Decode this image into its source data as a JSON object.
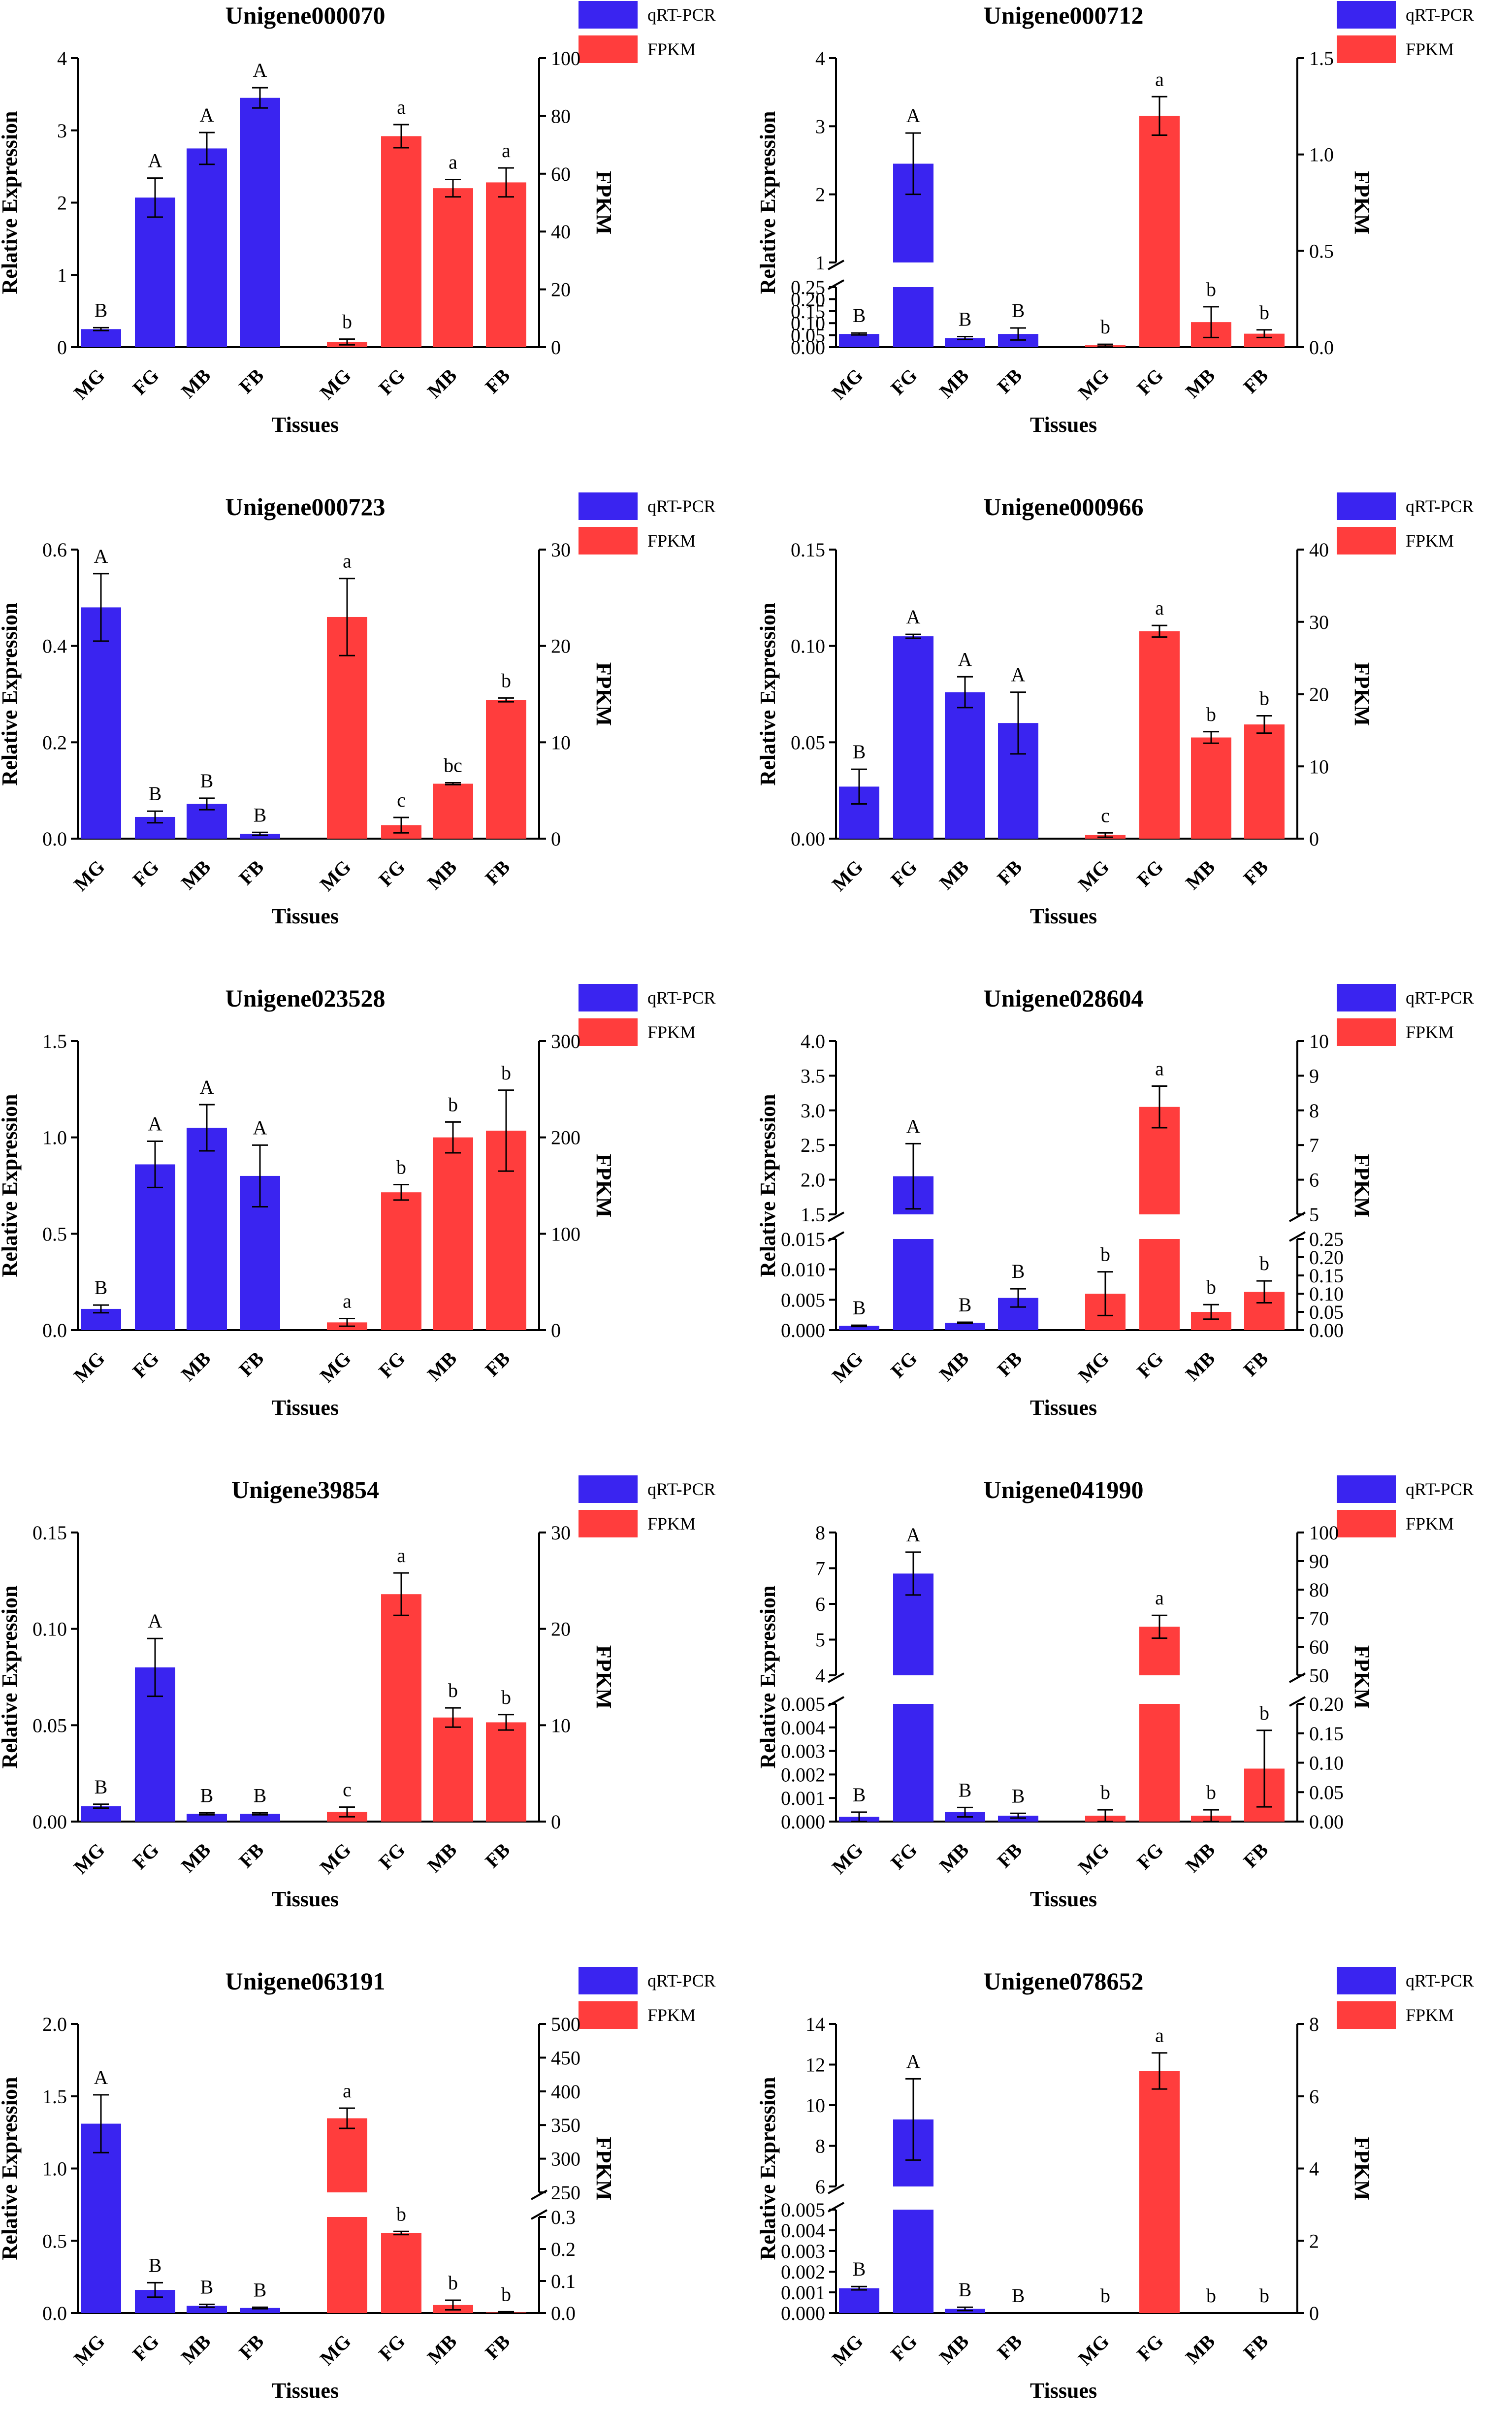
{
  "colors": {
    "qrt": "#3a24f0",
    "fpkm": "#ff3d3d"
  },
  "legend": {
    "qrt": "qRT-PCR",
    "fpkm": "FPKM"
  },
  "chart_data": [
    {
      "type": "bar",
      "title": "Unigene000070",
      "xlabel": "Tissues",
      "ylabel": "Relative Expression",
      "y2label": "FPKM",
      "categories": [
        "MG",
        "FG",
        "MB",
        "FB"
      ],
      "series": [
        {
          "name": "qRT-PCR",
          "values": [
            0.25,
            2.07,
            2.75,
            3.45
          ],
          "errors": [
            0.02,
            0.27,
            0.22,
            0.14
          ],
          "letters": [
            "B",
            "A",
            "A",
            "A"
          ]
        },
        {
          "name": "FPKM",
          "values": [
            1.8,
            73,
            55,
            57
          ],
          "errors": [
            1,
            4,
            3,
            5
          ],
          "letters": [
            "b",
            "a",
            "a",
            "a"
          ]
        }
      ],
      "left_axis": {
        "segments": [
          {
            "lo": 0,
            "hi": 4,
            "ticks": [
              "0",
              "1",
              "2",
              "3",
              "4"
            ]
          }
        ]
      },
      "right_axis": {
        "segments": [
          {
            "lo": 0,
            "hi": 100,
            "ticks": [
              "0",
              "20",
              "40",
              "60",
              "80",
              "100"
            ]
          }
        ]
      }
    },
    {
      "type": "bar",
      "title": "Unigene000712",
      "xlabel": "Tissues",
      "ylabel": "Relative Expression",
      "y2label": "FPKM",
      "categories": [
        "MG",
        "FG",
        "MB",
        "FB"
      ],
      "series": [
        {
          "name": "qRT-PCR",
          "values": [
            0.055,
            2.45,
            0.038,
            0.055
          ],
          "errors": [
            0.004,
            0.45,
            0.006,
            0.025
          ],
          "letters": [
            "B",
            "A",
            "B",
            "B"
          ]
        },
        {
          "name": "FPKM",
          "values": [
            0.01,
            1.2,
            0.13,
            0.07
          ],
          "errors": [
            0.005,
            0.1,
            0.08,
            0.02
          ],
          "letters": [
            "b",
            "a",
            "b",
            "b"
          ]
        }
      ],
      "left_axis": {
        "segments": [
          {
            "lo": 0,
            "hi": 0.25,
            "ticks": [
              "0.00",
              "0.05",
              "0.10",
              "0.15",
              "0.20",
              "0.25"
            ]
          },
          {
            "lo": 1,
            "hi": 4,
            "ticks": [
              "1",
              "2",
              "3",
              "4"
            ]
          }
        ]
      },
      "right_axis": {
        "segments": [
          {
            "lo": 0,
            "hi": 1.5,
            "ticks": [
              "0.0",
              "0.5",
              "1.0",
              "1.5"
            ]
          }
        ]
      }
    },
    {
      "type": "bar",
      "title": "Unigene000723",
      "xlabel": "Tissues",
      "ylabel": "Relative Expression",
      "y2label": "FPKM",
      "categories": [
        "MG",
        "FG",
        "MB",
        "FB"
      ],
      "series": [
        {
          "name": "qRT-PCR",
          "values": [
            0.48,
            0.045,
            0.072,
            0.01
          ],
          "errors": [
            0.07,
            0.012,
            0.012,
            0.003
          ],
          "letters": [
            "A",
            "B",
            "B",
            "B"
          ]
        },
        {
          "name": "FPKM",
          "values": [
            23,
            1.4,
            5.7,
            14.4
          ],
          "errors": [
            4,
            0.8,
            0.1,
            0.2
          ],
          "letters": [
            "a",
            "c",
            "bc",
            "b"
          ]
        }
      ],
      "left_axis": {
        "segments": [
          {
            "lo": 0,
            "hi": 0.6,
            "ticks": [
              "0.0",
              "0.2",
              "0.4",
              "0.6"
            ]
          }
        ]
      },
      "right_axis": {
        "segments": [
          {
            "lo": 0,
            "hi": 30,
            "ticks": [
              "0",
              "10",
              "20",
              "30"
            ]
          }
        ]
      }
    },
    {
      "type": "bar",
      "title": "Unigene000966",
      "xlabel": "Tissues",
      "ylabel": "Relative Expression",
      "y2label": "FPKM",
      "categories": [
        "MG",
        "FG",
        "MB",
        "FB"
      ],
      "series": [
        {
          "name": "qRT-PCR",
          "values": [
            0.027,
            0.105,
            0.076,
            0.06
          ],
          "errors": [
            0.009,
            0.001,
            0.008,
            0.016
          ],
          "letters": [
            "B",
            "A",
            "A",
            "A"
          ]
        },
        {
          "name": "FPKM",
          "values": [
            0.5,
            28.7,
            14,
            15.8
          ],
          "errors": [
            0.3,
            0.8,
            0.8,
            1.2
          ],
          "letters": [
            "c",
            "a",
            "b",
            "b"
          ]
        }
      ],
      "left_axis": {
        "segments": [
          {
            "lo": 0,
            "hi": 0.15,
            "ticks": [
              "0.00",
              "0.05",
              "0.10",
              "0.15"
            ]
          }
        ]
      },
      "right_axis": {
        "segments": [
          {
            "lo": 0,
            "hi": 40,
            "ticks": [
              "0",
              "10",
              "20",
              "30",
              "40"
            ]
          }
        ]
      }
    },
    {
      "type": "bar",
      "title": "Unigene023528",
      "xlabel": "Tissues",
      "ylabel": "Relative Expression",
      "y2label": "FPKM",
      "categories": [
        "MG",
        "FG",
        "MB",
        "FB"
      ],
      "series": [
        {
          "name": "qRT-PCR",
          "values": [
            0.11,
            0.86,
            1.05,
            0.8
          ],
          "errors": [
            0.02,
            0.12,
            0.12,
            0.16
          ],
          "letters": [
            "B",
            "A",
            "A",
            "A"
          ]
        },
        {
          "name": "FPKM",
          "values": [
            8,
            143,
            200,
            207
          ],
          "errors": [
            4,
            8,
            16,
            42
          ],
          "letters": [
            "a",
            "b",
            "b",
            "b"
          ]
        }
      ],
      "left_axis": {
        "segments": [
          {
            "lo": 0,
            "hi": 1.5,
            "ticks": [
              "0.0",
              "0.5",
              "1.0",
              "1.5"
            ]
          }
        ]
      },
      "right_axis": {
        "segments": [
          {
            "lo": 0,
            "hi": 300,
            "ticks": [
              "0",
              "100",
              "200",
              "300"
            ]
          }
        ]
      }
    },
    {
      "type": "bar",
      "title": "Unigene028604",
      "xlabel": "Tissues",
      "ylabel": "Relative Expression",
      "y2label": "FPKM",
      "categories": [
        "MG",
        "FG",
        "MB",
        "FB"
      ],
      "series": [
        {
          "name": "qRT-PCR",
          "values": [
            0.0007,
            2.05,
            0.0012,
            0.0053
          ],
          "errors": [
            0.0001,
            0.47,
            0.0001,
            0.0015
          ],
          "letters": [
            "B",
            "A",
            "B",
            "B"
          ]
        },
        {
          "name": "FPKM",
          "values": [
            0.1,
            8.1,
            0.05,
            0.105
          ],
          "errors": [
            0.06,
            0.6,
            0.02,
            0.03
          ],
          "letters": [
            "b",
            "a",
            "b",
            "b"
          ]
        }
      ],
      "left_axis": {
        "segments": [
          {
            "lo": 0,
            "hi": 0.015,
            "ticks": [
              "0.000",
              "0.005",
              "0.010",
              "0.015"
            ]
          },
          {
            "lo": 1.5,
            "hi": 4,
            "ticks": [
              "1.5",
              "2.0",
              "2.5",
              "3.0",
              "3.5",
              "4.0"
            ]
          }
        ]
      },
      "right_axis": {
        "segments": [
          {
            "lo": 0,
            "hi": 0.25,
            "ticks": [
              "0.00",
              "0.05",
              "0.10",
              "0.15",
              "0.20",
              "0.25"
            ]
          },
          {
            "lo": 5,
            "hi": 10,
            "ticks": [
              "5",
              "6",
              "7",
              "8",
              "9",
              "10"
            ]
          }
        ]
      }
    },
    {
      "type": "bar",
      "title": "Unigene39854",
      "xlabel": "Tissues",
      "ylabel": "Relative Expression",
      "y2label": "FPKM",
      "categories": [
        "MG",
        "FG",
        "MB",
        "FB"
      ],
      "series": [
        {
          "name": "qRT-PCR",
          "values": [
            0.008,
            0.08,
            0.004,
            0.004
          ],
          "errors": [
            0.001,
            0.015,
            0.0005,
            0.0005
          ],
          "letters": [
            "B",
            "A",
            "B",
            "B"
          ]
        },
        {
          "name": "FPKM",
          "values": [
            1,
            23.6,
            10.8,
            10.3
          ],
          "errors": [
            0.5,
            2.2,
            1,
            0.8
          ],
          "letters": [
            "c",
            "a",
            "b",
            "b"
          ]
        }
      ],
      "left_axis": {
        "segments": [
          {
            "lo": 0,
            "hi": 0.15,
            "ticks": [
              "0.00",
              "0.05",
              "0.10",
              "0.15"
            ]
          }
        ]
      },
      "right_axis": {
        "segments": [
          {
            "lo": 0,
            "hi": 30,
            "ticks": [
              "0",
              "10",
              "20",
              "30"
            ]
          }
        ]
      }
    },
    {
      "type": "bar",
      "title": "Unigene041990",
      "xlabel": "Tissues",
      "ylabel": "Relative Expression",
      "y2label": "FPKM",
      "categories": [
        "MG",
        "FG",
        "MB",
        "FB"
      ],
      "series": [
        {
          "name": "qRT-PCR",
          "values": [
            0.0002,
            6.85,
            0.0004,
            0.00025
          ],
          "errors": [
            0.0002,
            0.6,
            0.0002,
            0.0001
          ],
          "letters": [
            "B",
            "A",
            "B",
            "B"
          ]
        },
        {
          "name": "FPKM",
          "values": [
            0.01,
            67,
            0.01,
            0.09
          ],
          "errors": [
            0.01,
            4,
            0.01,
            0.065
          ],
          "letters": [
            "b",
            "a",
            "b",
            "b"
          ]
        }
      ],
      "left_axis": {
        "segments": [
          {
            "lo": 0,
            "hi": 0.005,
            "ticks": [
              "0.000",
              "0.001",
              "0.002",
              "0.003",
              "0.004",
              "0.005"
            ]
          },
          {
            "lo": 4,
            "hi": 8,
            "ticks": [
              "4",
              "5",
              "6",
              "7",
              "8"
            ]
          }
        ]
      },
      "right_axis": {
        "segments": [
          {
            "lo": 0,
            "hi": 0.2,
            "ticks": [
              "0.00",
              "0.05",
              "0.10",
              "0.15",
              "0.20"
            ]
          },
          {
            "lo": 50,
            "hi": 100,
            "ticks": [
              "50",
              "60",
              "70",
              "80",
              "90",
              "100"
            ]
          }
        ]
      }
    },
    {
      "type": "bar",
      "title": "Unigene063191",
      "xlabel": "Tissues",
      "ylabel": "Relative Expression",
      "y2label": "FPKM",
      "categories": [
        "MG",
        "FG",
        "MB",
        "FB"
      ],
      "series": [
        {
          "name": "qRT-PCR",
          "values": [
            1.31,
            0.16,
            0.05,
            0.035
          ],
          "errors": [
            0.2,
            0.05,
            0.01,
            0.005
          ],
          "letters": [
            "A",
            "B",
            "B",
            "B"
          ]
        },
        {
          "name": "FPKM",
          "values": [
            360,
            0.25,
            0.025,
            0.002
          ],
          "errors": [
            15,
            0.005,
            0.015,
            0.002
          ],
          "letters": [
            "a",
            "b",
            "b",
            "b"
          ]
        }
      ],
      "left_axis": {
        "segments": [
          {
            "lo": 0,
            "hi": 2,
            "ticks": [
              "0.0",
              "0.5",
              "1.0",
              "1.5",
              "2.0"
            ]
          }
        ]
      },
      "right_axis": {
        "segments": [
          {
            "lo": 0,
            "hi": 0.3,
            "ticks": [
              "0.0",
              "0.1",
              "0.2",
              "0.3"
            ]
          },
          {
            "lo": 250,
            "hi": 500,
            "ticks": [
              "250",
              "300",
              "350",
              "400",
              "450",
              "500"
            ]
          }
        ]
      }
    },
    {
      "type": "bar",
      "title": "Unigene078652",
      "xlabel": "Tissues",
      "ylabel": "Relative Expression",
      "y2label": "FPKM",
      "categories": [
        "MG",
        "FG",
        "MB",
        "FB"
      ],
      "series": [
        {
          "name": "qRT-PCR",
          "values": [
            0.0012,
            9.3,
            0.0002,
            0
          ],
          "errors": [
            8e-05,
            2.0,
            8e-05,
            0
          ],
          "letters": [
            "B",
            "A",
            "B",
            "B"
          ]
        },
        {
          "name": "FPKM",
          "values": [
            0,
            6.7,
            0,
            0
          ],
          "errors": [
            0,
            0.5,
            0,
            0
          ],
          "letters": [
            "b",
            "a",
            "b",
            "b"
          ]
        }
      ],
      "left_axis": {
        "segments": [
          {
            "lo": 0,
            "hi": 0.005,
            "ticks": [
              "0.000",
              "0.001",
              "0.002",
              "0.003",
              "0.004",
              "0.005"
            ]
          },
          {
            "lo": 6,
            "hi": 14,
            "ticks": [
              "6",
              "8",
              "10",
              "12",
              "14"
            ]
          }
        ]
      },
      "right_axis": {
        "segments": [
          {
            "lo": 0,
            "hi": 8,
            "ticks": [
              "0",
              "2",
              "4",
              "6",
              "8"
            ]
          }
        ]
      }
    }
  ]
}
